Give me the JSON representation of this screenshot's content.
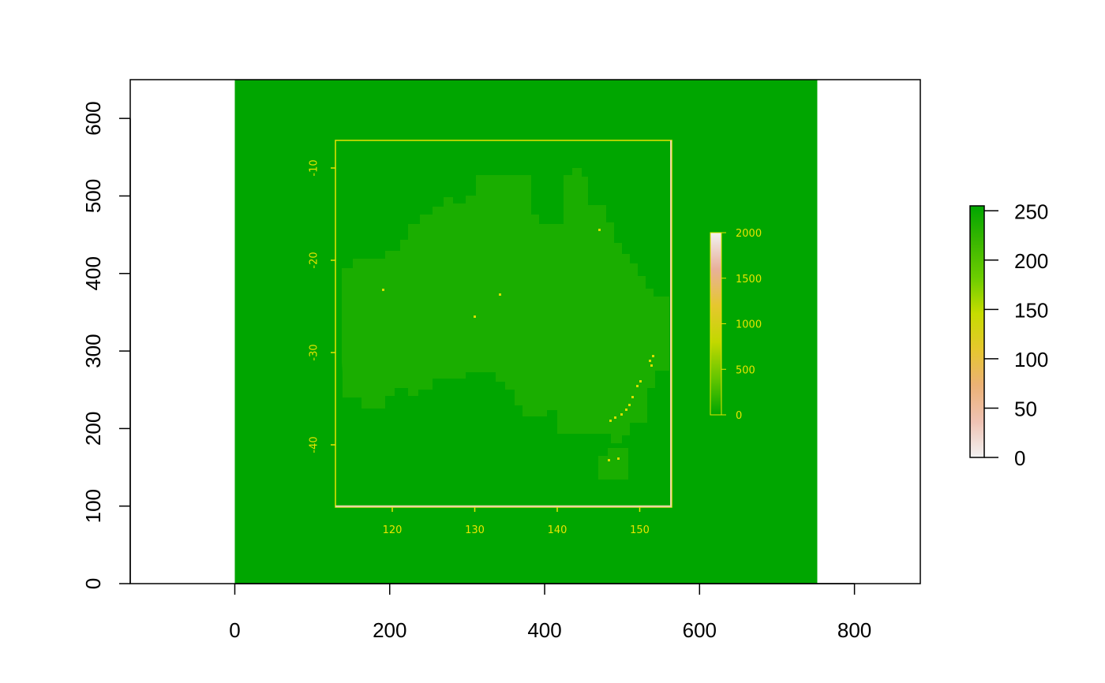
{
  "chart_data": {
    "type": "heatmap",
    "title": "",
    "xlabel": "",
    "ylabel": "",
    "xlim": [
      -135,
      885
    ],
    "ylim": [
      0,
      650
    ],
    "x_ticks": [
      0,
      200,
      400,
      600,
      800
    ],
    "y_ticks": [
      0,
      100,
      200,
      300,
      400,
      500,
      600
    ],
    "raster_extent": {
      "x": [
        0,
        752
      ],
      "y": [
        0,
        650
      ]
    },
    "raster_fill_value": 255,
    "legend": {
      "position": "right",
      "range": [
        0,
        255
      ],
      "ticks": [
        0,
        50,
        100,
        150,
        200,
        250
      ],
      "colors": [
        "#f2f2f2",
        "#efc2b3",
        "#ecb176",
        "#e6c72e",
        "#c6dc00",
        "#6ccd00",
        "#3ab700",
        "#00a600"
      ]
    },
    "inner_plot": {
      "description": "embedded rendered elevation map of Australia",
      "lon_ticks": [
        120,
        130,
        140,
        150
      ],
      "lat_ticks": [
        -10,
        -20,
        -30,
        -40
      ],
      "lon_range": [
        113,
        154
      ],
      "lat_range": [
        -47,
        -7
      ],
      "legend_ticks": [
        0,
        500,
        1000,
        1500,
        2000
      ],
      "legend_colors": [
        "#00a600",
        "#63c600",
        "#c2d800",
        "#e6c72e",
        "#e8b09a",
        "#f2f2f2"
      ],
      "land_color": "#1aae00"
    }
  },
  "colors": {
    "background": "#ffffff",
    "raster_green": "#00a600",
    "land_green": "#1aae00",
    "frame_yellow": "#e8e400"
  }
}
